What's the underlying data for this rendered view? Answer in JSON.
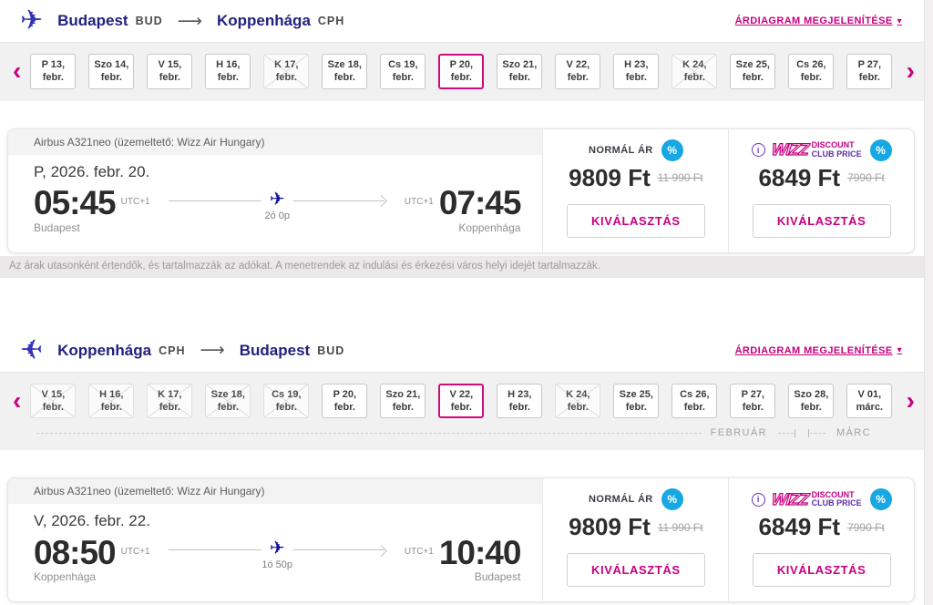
{
  "colors": {
    "magenta": "#C6007E",
    "navy": "#23217E",
    "badge_blue": "#17A7E2",
    "purple": "#5E2CAE"
  },
  "icons": {
    "route_arrow": "⟶",
    "chevron_left": "‹",
    "chevron_right": "›",
    "plane": "✈",
    "percent": "%",
    "info": "i",
    "caret_down": "▾"
  },
  "price_note": "Az árak utasonként értendők, és tartalmazzák az adókat. A menetrendek az indulási és érkezési város helyi idejét tartalmazzák.",
  "sections": [
    {
      "route": {
        "from_city": "Budapest",
        "from_code": "BUD",
        "to_city": "Koppenhága",
        "to_code": "CPH"
      },
      "price_chart_link": "ÁRDIAGRAM MEGJELENÍTÉSE",
      "dates": [
        {
          "day": "P 13,",
          "month": "febr.",
          "state": "normal"
        },
        {
          "day": "Szo 14,",
          "month": "febr.",
          "state": "normal"
        },
        {
          "day": "V 15,",
          "month": "febr.",
          "state": "normal"
        },
        {
          "day": "H 16,",
          "month": "febr.",
          "state": "normal"
        },
        {
          "day": "K 17,",
          "month": "febr.",
          "state": "disabled"
        },
        {
          "day": "Sze 18,",
          "month": "febr.",
          "state": "normal"
        },
        {
          "day": "Cs 19,",
          "month": "febr.",
          "state": "normal"
        },
        {
          "day": "P 20,",
          "month": "febr.",
          "state": "selected"
        },
        {
          "day": "Szo 21,",
          "month": "febr.",
          "state": "normal"
        },
        {
          "day": "V 22,",
          "month": "febr.",
          "state": "normal"
        },
        {
          "day": "H 23,",
          "month": "febr.",
          "state": "normal"
        },
        {
          "day": "K 24,",
          "month": "febr.",
          "state": "disabled"
        },
        {
          "day": "Sze 25,",
          "month": "febr.",
          "state": "normal"
        },
        {
          "day": "Cs 26,",
          "month": "febr.",
          "state": "normal"
        },
        {
          "day": "P 27,",
          "month": "febr.",
          "state": "normal"
        }
      ],
      "flight": {
        "aircraft": "Airbus A321neo (üzemeltető: Wizz Air Hungary)",
        "date_label": "P, 2026. febr. 20.",
        "departure": {
          "time": "05:45",
          "tz": "UTC+1",
          "city": "Budapest"
        },
        "arrival": {
          "time": "07:45",
          "tz": "UTC+1",
          "city": "Koppenhága"
        },
        "duration": "2ó 0p",
        "normal_price": {
          "label": "NORMÁL ÁR",
          "price": "9809 Ft",
          "old_price": "11 990 Ft",
          "button": "KIVÁLASZTÁS"
        },
        "club_price": {
          "brand": "WIZZ",
          "label_top": "DISCOUNT",
          "label_bottom": "CLUB PRICE",
          "price": "6849 Ft",
          "old_price": "7990 Ft",
          "button": "KIVÁLASZTÁS"
        }
      }
    },
    {
      "route": {
        "from_city": "Koppenhága",
        "from_code": "CPH",
        "to_city": "Budapest",
        "to_code": "BUD"
      },
      "price_chart_link": "ÁRDIAGRAM MEGJELENÍTÉSE",
      "dates": [
        {
          "day": "V 15,",
          "month": "febr.",
          "state": "disabled"
        },
        {
          "day": "H 16,",
          "month": "febr.",
          "state": "disabled"
        },
        {
          "day": "K 17,",
          "month": "febr.",
          "state": "disabled"
        },
        {
          "day": "Sze 18,",
          "month": "febr.",
          "state": "disabled"
        },
        {
          "day": "Cs 19,",
          "month": "febr.",
          "state": "disabled"
        },
        {
          "day": "P 20,",
          "month": "febr.",
          "state": "normal"
        },
        {
          "day": "Szo 21,",
          "month": "febr.",
          "state": "normal"
        },
        {
          "day": "V 22,",
          "month": "febr.",
          "state": "selected"
        },
        {
          "day": "H 23,",
          "month": "febr.",
          "state": "normal"
        },
        {
          "day": "K 24,",
          "month": "febr.",
          "state": "disabled"
        },
        {
          "day": "Sze 25,",
          "month": "febr.",
          "state": "normal"
        },
        {
          "day": "Cs 26,",
          "month": "febr.",
          "state": "normal"
        },
        {
          "day": "P 27,",
          "month": "febr.",
          "state": "normal"
        },
        {
          "day": "Szo 28,",
          "month": "febr.",
          "state": "normal"
        },
        {
          "day": "V 01,",
          "month": "márc.",
          "state": "normal"
        }
      ],
      "month_indicator": {
        "left": "FEBRUÁR",
        "right": "MÁRC"
      },
      "flight": {
        "aircraft": "Airbus A321neo (üzemeltető: Wizz Air Hungary)",
        "date_label": "V, 2026. febr. 22.",
        "departure": {
          "time": "08:50",
          "tz": "UTC+1",
          "city": "Koppenhága"
        },
        "arrival": {
          "time": "10:40",
          "tz": "UTC+1",
          "city": "Budapest"
        },
        "duration": "1ó 50p",
        "normal_price": {
          "label": "NORMÁL ÁR",
          "price": "9809 Ft",
          "old_price": "11 990 Ft",
          "button": "KIVÁLASZTÁS"
        },
        "club_price": {
          "brand": "WIZZ",
          "label_top": "DISCOUNT",
          "label_bottom": "CLUB PRICE",
          "price": "6849 Ft",
          "old_price": "7990 Ft",
          "button": "KIVÁLASZTÁS"
        }
      }
    }
  ]
}
